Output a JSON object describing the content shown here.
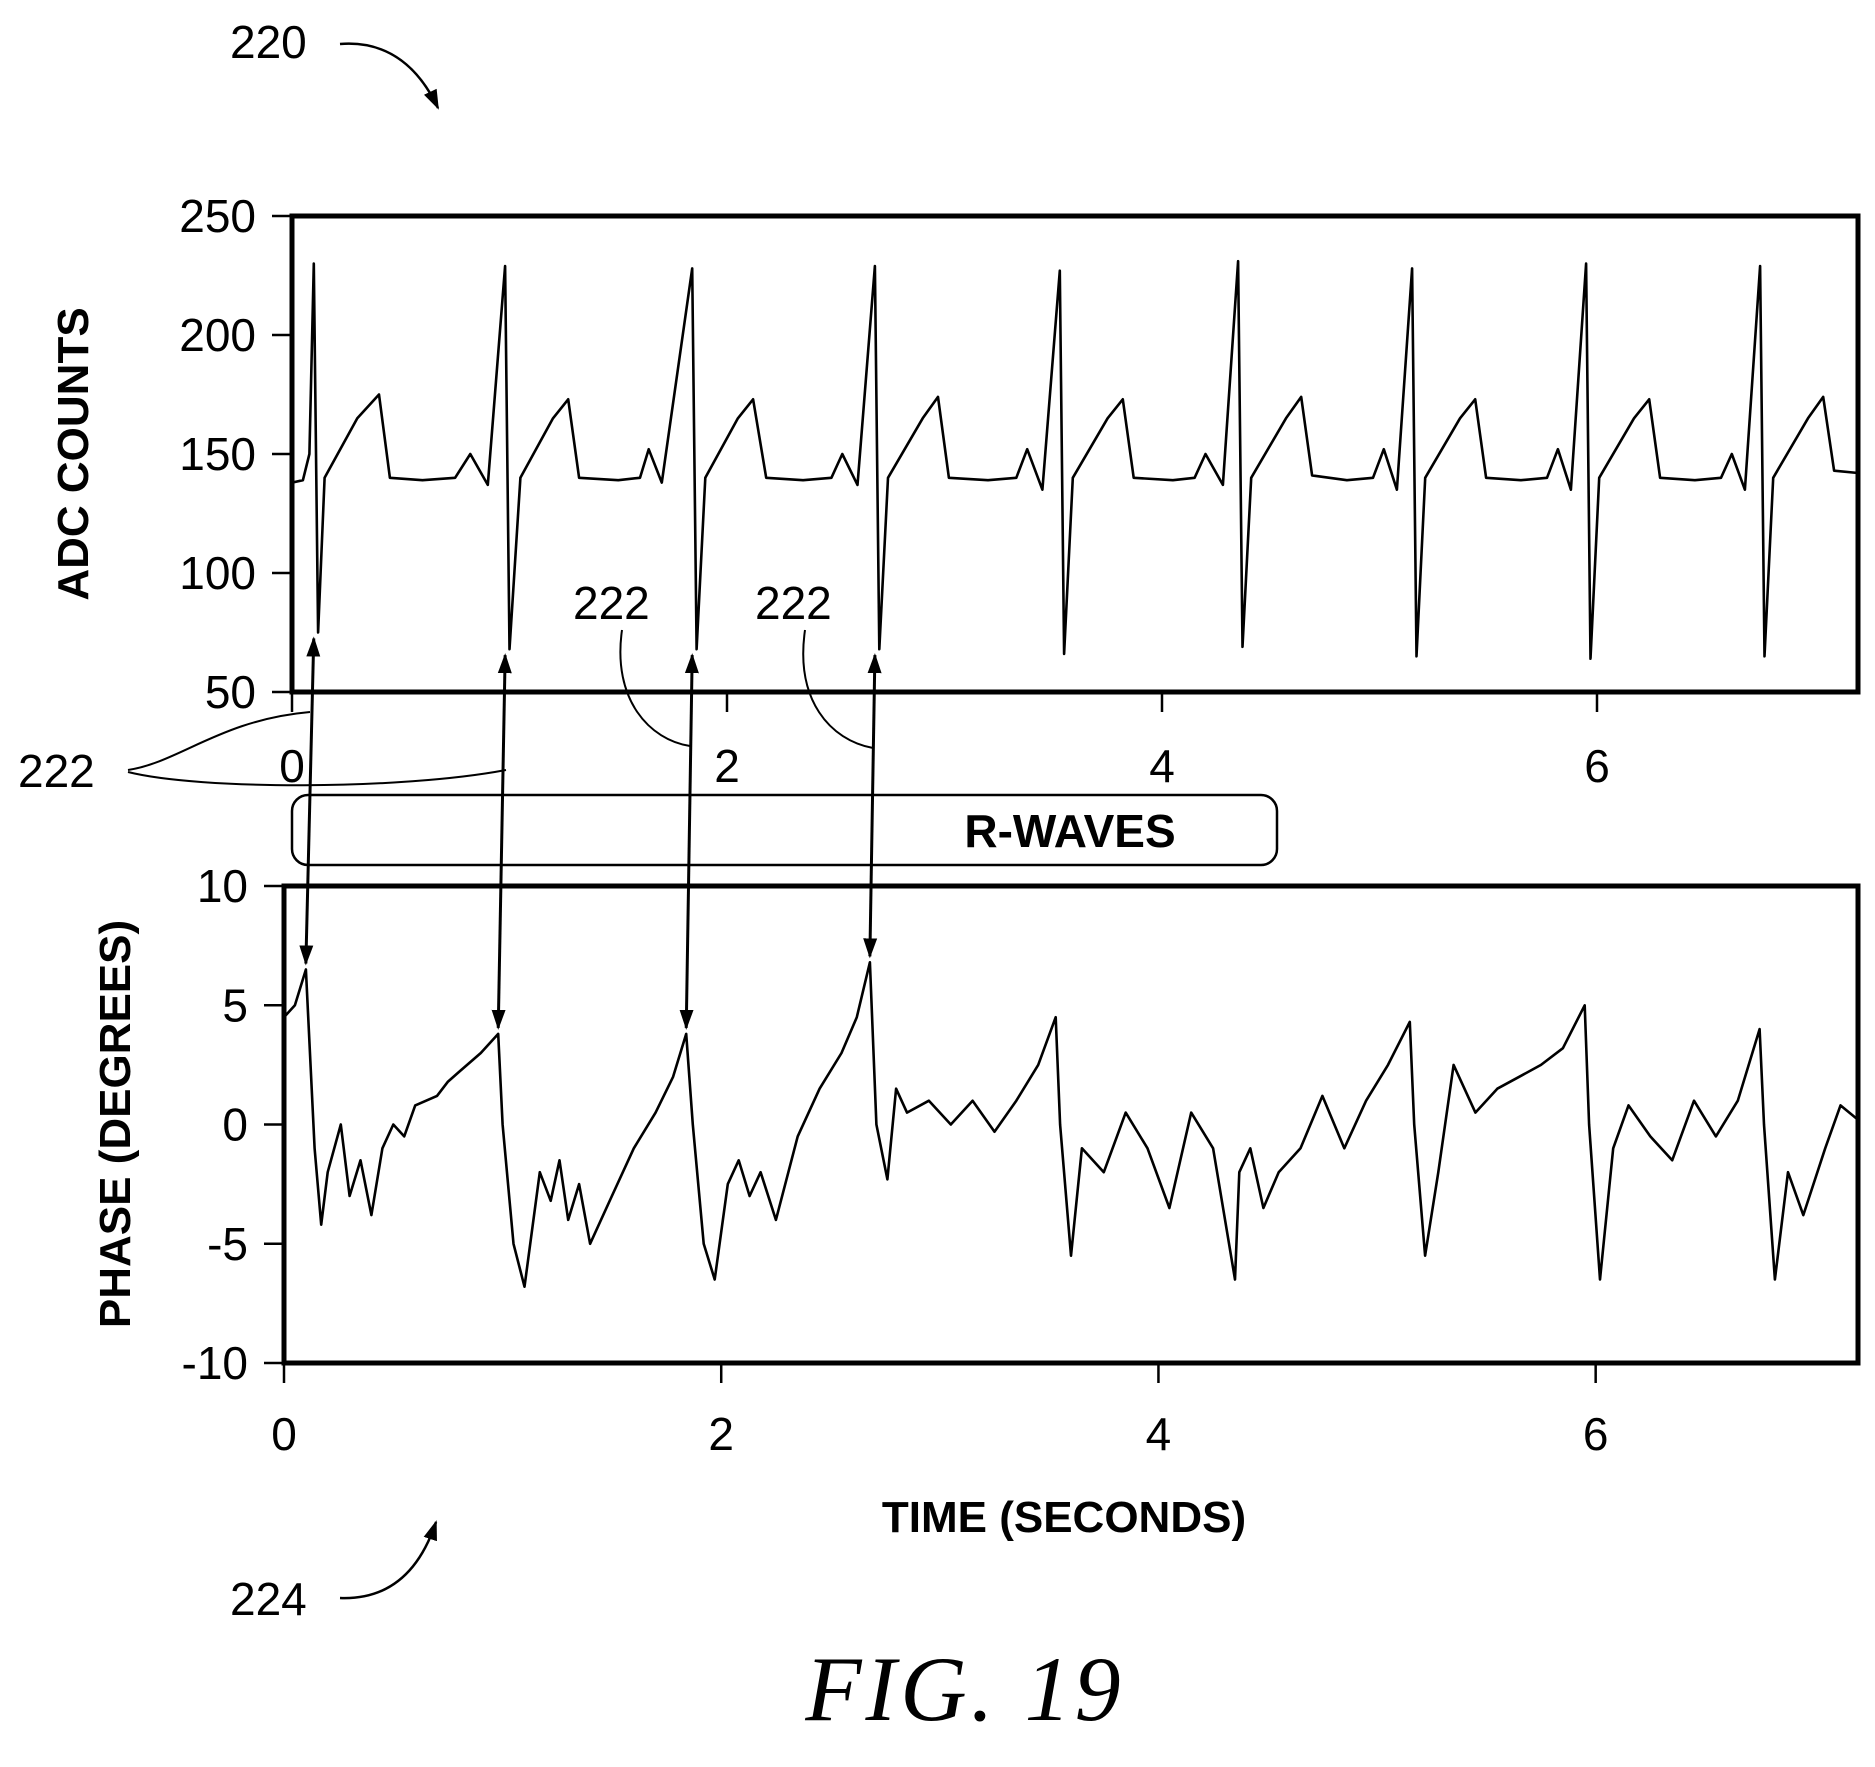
{
  "reference_numerals": {
    "top_figure": "220",
    "r_wave_markers": "222",
    "bottom_figure": "224"
  },
  "r_waves_label": "R-WAVES",
  "caption": "FIG. 19",
  "chart_data": [
    {
      "type": "line",
      "title": "",
      "xlabel": "",
      "ylabel": "ADC COUNTS",
      "xlim": [
        0,
        7.2
      ],
      "ylim": [
        50,
        250
      ],
      "x_ticks": [
        0,
        2,
        4,
        6
      ],
      "x_tick_labels": [
        "0",
        "2",
        "4",
        "6"
      ],
      "y_ticks": [
        50,
        100,
        150,
        200,
        250
      ],
      "y_tick_labels": [
        "50",
        "100",
        "150",
        "200",
        "250"
      ],
      "grid": false,
      "beat_times": [
        0.1,
        0.98,
        1.84,
        2.68,
        3.53,
        4.35,
        5.15,
        5.95,
        6.75
      ],
      "r_peak_values": [
        230,
        229,
        228,
        229,
        227,
        231,
        228,
        230,
        229
      ],
      "s_trough_values": [
        75,
        68,
        68,
        68,
        66,
        69,
        65,
        64,
        65
      ],
      "baseline_value": 140,
      "t_wave_peak_value": 175,
      "series": [
        {
          "x": [
            0.0,
            0.05,
            0.08,
            0.1,
            0.12,
            0.15,
            0.3,
            0.4,
            0.45,
            0.6,
            0.75,
            0.82,
            0.9,
            0.98,
            1.0,
            1.05,
            1.2,
            1.27,
            1.32,
            1.5,
            1.6,
            1.64,
            1.7,
            1.84,
            1.86,
            1.9,
            2.05,
            2.12,
            2.18,
            2.35,
            2.48,
            2.53,
            2.6,
            2.68,
            2.7,
            2.74,
            2.9,
            2.97,
            3.02,
            3.2,
            3.33,
            3.38,
            3.45,
            3.53,
            3.55,
            3.59,
            3.75,
            3.82,
            3.87,
            4.05,
            4.15,
            4.2,
            4.28,
            4.35,
            4.37,
            4.41,
            4.57,
            4.64,
            4.69,
            4.85,
            4.97,
            5.02,
            5.08,
            5.15,
            5.17,
            5.21,
            5.37,
            5.44,
            5.49,
            5.65,
            5.77,
            5.82,
            5.88,
            5.95,
            5.97,
            6.01,
            6.17,
            6.24,
            6.29,
            6.45,
            6.57,
            6.62,
            6.68,
            6.75,
            6.77,
            6.81,
            6.97,
            7.04,
            7.09,
            7.2
          ],
          "y": [
            138,
            139,
            150,
            230,
            75,
            140,
            165,
            175,
            140,
            139,
            140,
            150,
            137,
            229,
            68,
            140,
            165,
            173,
            140,
            139,
            140,
            152,
            138,
            228,
            68,
            140,
            165,
            173,
            140,
            139,
            140,
            150,
            137,
            229,
            68,
            140,
            165,
            174,
            140,
            139,
            140,
            152,
            135,
            227,
            66,
            140,
            165,
            173,
            140,
            139,
            140,
            150,
            137,
            231,
            69,
            140,
            165,
            174,
            141,
            139,
            140,
            152,
            135,
            228,
            65,
            140,
            165,
            173,
            140,
            139,
            140,
            152,
            135,
            230,
            64,
            140,
            165,
            173,
            140,
            139,
            140,
            150,
            135,
            229,
            65,
            140,
            165,
            174,
            143,
            142
          ]
        }
      ]
    },
    {
      "type": "line",
      "title": "",
      "xlabel": "TIME (SECONDS)",
      "ylabel": "PHASE (DEGREES)",
      "xlim": [
        0,
        7.2
      ],
      "ylim": [
        -10,
        10
      ],
      "x_ticks": [
        0,
        2,
        4,
        6
      ],
      "x_tick_labels": [
        "0",
        "2",
        "4",
        "6"
      ],
      "y_ticks": [
        -10,
        -5,
        0,
        5,
        10
      ],
      "y_tick_labels": [
        "-10",
        "-5",
        "0",
        "5",
        "10"
      ],
      "grid": false,
      "series": [
        {
          "x": [
            0.0,
            0.05,
            0.1,
            0.14,
            0.17,
            0.2,
            0.26,
            0.3,
            0.35,
            0.4,
            0.45,
            0.5,
            0.55,
            0.6,
            0.7,
            0.75,
            0.8,
            0.9,
            0.98,
            1.0,
            1.05,
            1.1,
            1.17,
            1.22,
            1.26,
            1.3,
            1.35,
            1.4,
            1.5,
            1.6,
            1.7,
            1.78,
            1.84,
            1.87,
            1.92,
            1.97,
            2.03,
            2.08,
            2.13,
            2.18,
            2.25,
            2.35,
            2.45,
            2.55,
            2.62,
            2.68,
            2.71,
            2.76,
            2.8,
            2.85,
            2.95,
            3.05,
            3.15,
            3.25,
            3.35,
            3.45,
            3.53,
            3.55,
            3.6,
            3.65,
            3.75,
            3.85,
            3.95,
            4.05,
            4.15,
            4.25,
            4.35,
            4.37,
            4.42,
            4.48,
            4.55,
            4.65,
            4.75,
            4.85,
            4.95,
            5.05,
            5.15,
            5.17,
            5.22,
            5.28,
            5.35,
            5.45,
            5.55,
            5.65,
            5.75,
            5.85,
            5.95,
            5.97,
            6.02,
            6.08,
            6.15,
            6.25,
            6.35,
            6.45,
            6.55,
            6.65,
            6.75,
            6.77,
            6.82,
            6.88,
            6.95,
            7.05,
            7.12,
            7.2
          ],
          "y": [
            4.5,
            5.0,
            6.5,
            -1.0,
            -4.2,
            -2.0,
            0.0,
            -3.0,
            -1.5,
            -3.8,
            -1.0,
            0.0,
            -0.5,
            0.8,
            1.2,
            1.8,
            2.2,
            3.0,
            3.8,
            0.0,
            -5.0,
            -6.8,
            -2.0,
            -3.2,
            -1.5,
            -4.0,
            -2.5,
            -5.0,
            -3.0,
            -1.0,
            0.5,
            2.0,
            3.8,
            0.0,
            -5.0,
            -6.5,
            -2.5,
            -1.5,
            -3.0,
            -2.0,
            -4.0,
            -0.5,
            1.5,
            3.0,
            4.5,
            6.8,
            0.0,
            -2.3,
            1.5,
            0.5,
            1.0,
            0.0,
            1.0,
            -0.3,
            1.0,
            2.5,
            4.5,
            0.0,
            -5.5,
            -1.0,
            -2.0,
            0.5,
            -1.0,
            -3.5,
            0.5,
            -1.0,
            -6.5,
            -2.0,
            -1.0,
            -3.5,
            -2.0,
            -1.0,
            1.2,
            -1.0,
            1.0,
            2.5,
            4.3,
            0.0,
            -5.5,
            -2.0,
            2.5,
            0.5,
            1.5,
            2.0,
            2.5,
            3.2,
            5.0,
            0.0,
            -6.5,
            -1.0,
            0.8,
            -0.5,
            -1.5,
            1.0,
            -0.5,
            1.0,
            4.0,
            0.0,
            -6.5,
            -2.0,
            -3.8,
            -1.0,
            0.8,
            0.2
          ]
        }
      ]
    }
  ]
}
